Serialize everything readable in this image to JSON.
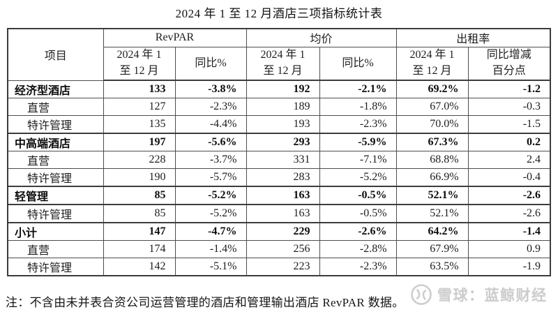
{
  "title": "2024 年 1 至 12 月酒店三项指标统计表",
  "table": {
    "item_header": "项目",
    "groups": [
      {
        "label": "RevPAR",
        "period": "2024 年 1\n至 12 月",
        "yoy": "同比%"
      },
      {
        "label": "均价",
        "period": "2024 年 1\n至 12 月",
        "yoy": "同比%"
      },
      {
        "label": "出租率",
        "period": "2024 年 1\n至 12 月",
        "yoy": "同比增减\n百分点"
      }
    ],
    "rows": [
      {
        "label": "经济型酒店",
        "category": true,
        "thick_top": false,
        "thick_bottom": false,
        "values": [
          "133",
          "-3.8%",
          "192",
          "-2.1%",
          "69.2%",
          "-1.2"
        ]
      },
      {
        "label": "直营",
        "category": false,
        "thick_top": false,
        "thick_bottom": false,
        "values": [
          "127",
          "-2.3%",
          "189",
          "-1.8%",
          "67.0%",
          "-0.3"
        ]
      },
      {
        "label": "特许管理",
        "category": false,
        "thick_top": false,
        "thick_bottom": false,
        "values": [
          "135",
          "-4.4%",
          "193",
          "-2.3%",
          "70.0%",
          "-1.5"
        ]
      },
      {
        "label": "中高端酒店",
        "category": true,
        "thick_top": true,
        "thick_bottom": false,
        "values": [
          "197",
          "-5.6%",
          "293",
          "-5.9%",
          "67.3%",
          "0.2"
        ]
      },
      {
        "label": "直营",
        "category": false,
        "thick_top": false,
        "thick_bottom": false,
        "values": [
          "228",
          "-3.7%",
          "331",
          "-7.1%",
          "68.8%",
          "2.4"
        ]
      },
      {
        "label": "特许管理",
        "category": false,
        "thick_top": false,
        "thick_bottom": false,
        "values": [
          "190",
          "-5.7%",
          "283",
          "-5.2%",
          "66.9%",
          "-0.4"
        ]
      },
      {
        "label": "轻管理",
        "category": true,
        "thick_top": true,
        "thick_bottom": true,
        "values": [
          "85",
          "-5.2%",
          "163",
          "-0.5%",
          "52.1%",
          "-2.6"
        ]
      },
      {
        "label": "特许管理",
        "category": false,
        "thick_top": false,
        "thick_bottom": false,
        "values": [
          "85",
          "-5.2%",
          "163",
          "-0.5%",
          "52.1%",
          "-2.6"
        ]
      },
      {
        "label": "小计",
        "category": true,
        "thick_top": true,
        "thick_bottom": false,
        "values": [
          "147",
          "-4.7%",
          "229",
          "-2.6%",
          "64.2%",
          "-1.4"
        ]
      },
      {
        "label": "直营",
        "category": false,
        "thick_top": false,
        "thick_bottom": false,
        "values": [
          "174",
          "-1.4%",
          "256",
          "-2.8%",
          "67.9%",
          "0.9"
        ]
      },
      {
        "label": "特许管理",
        "category": false,
        "thick_top": false,
        "thick_bottom": false,
        "values": [
          "142",
          "-5.1%",
          "223",
          "-2.3%",
          "63.5%",
          "-1.9"
        ]
      }
    ]
  },
  "note": "注：不含由未并表合资公司运营管理的酒店和管理输出酒店 RevPAR 数据。",
  "watermark": {
    "icon": "xueqiu-logo",
    "text": "雪球：蓝鲸财经"
  },
  "colors": {
    "background": "#ffffff",
    "border": "#4d4d4d",
    "border_thick": "#3c3c3c",
    "text": "#1d1d1d",
    "watermark": "#cdcdcd"
  }
}
